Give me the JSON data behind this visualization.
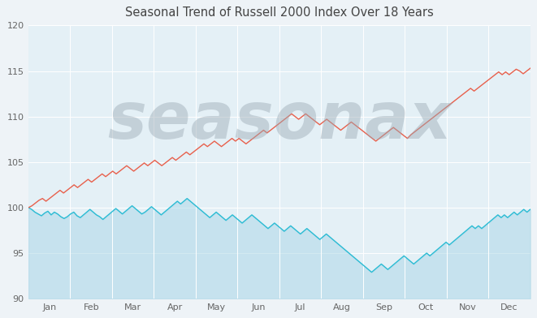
{
  "title": "Seasonal Trend of Russell 2000 Index Over 18 Years",
  "title_fontsize": 10.5,
  "background_color": "#eef3f7",
  "plot_bg_color": "#e4f0f6",
  "ylim": [
    90,
    120
  ],
  "yticks": [
    90,
    95,
    100,
    105,
    110,
    115,
    120
  ],
  "months": [
    "Jan",
    "Feb",
    "Mar",
    "Apr",
    "May",
    "Jun",
    "Jul",
    "Aug",
    "Sep",
    "Oct",
    "Nov",
    "Dec"
  ],
  "watermark": "seasonax",
  "watermark_color": "#9baab5",
  "watermark_alpha": 0.45,
  "watermark_fontsize": 58,
  "line_blue_color": "#2bbcd4",
  "line_red_color": "#e8604c",
  "fill_blue_color": "#aed8e8",
  "fill_alpha": 0.55,
  "blue_data": [
    100.0,
    99.8,
    99.5,
    99.3,
    99.1,
    99.4,
    99.6,
    99.2,
    99.5,
    99.3,
    99.0,
    98.8,
    99.0,
    99.3,
    99.5,
    99.1,
    98.9,
    99.2,
    99.5,
    99.8,
    99.5,
    99.2,
    99.0,
    98.7,
    99.0,
    99.3,
    99.6,
    99.9,
    99.6,
    99.3,
    99.6,
    99.9,
    100.2,
    99.9,
    99.6,
    99.3,
    99.5,
    99.8,
    100.1,
    99.8,
    99.5,
    99.2,
    99.5,
    99.8,
    100.1,
    100.4,
    100.7,
    100.4,
    100.7,
    101.0,
    100.7,
    100.4,
    100.1,
    99.8,
    99.5,
    99.2,
    98.9,
    99.2,
    99.5,
    99.2,
    98.9,
    98.6,
    98.9,
    99.2,
    98.9,
    98.6,
    98.3,
    98.6,
    98.9,
    99.2,
    98.9,
    98.6,
    98.3,
    98.0,
    97.7,
    98.0,
    98.3,
    98.0,
    97.7,
    97.4,
    97.7,
    98.0,
    97.7,
    97.4,
    97.1,
    97.4,
    97.7,
    97.4,
    97.1,
    96.8,
    96.5,
    96.8,
    97.1,
    96.8,
    96.5,
    96.2,
    95.9,
    95.6,
    95.3,
    95.0,
    94.7,
    94.4,
    94.1,
    93.8,
    93.5,
    93.2,
    92.9,
    93.2,
    93.5,
    93.8,
    93.5,
    93.2,
    93.5,
    93.8,
    94.1,
    94.4,
    94.7,
    94.4,
    94.1,
    93.8,
    94.1,
    94.4,
    94.7,
    95.0,
    94.7,
    95.0,
    95.3,
    95.6,
    95.9,
    96.2,
    95.9,
    96.2,
    96.5,
    96.8,
    97.1,
    97.4,
    97.7,
    98.0,
    97.7,
    98.0,
    97.7,
    98.0,
    98.3,
    98.6,
    98.9,
    99.2,
    98.9,
    99.2,
    98.9,
    99.2,
    99.5,
    99.2,
    99.5,
    99.8,
    99.5,
    99.8
  ],
  "red_data": [
    100.0,
    100.2,
    100.5,
    100.8,
    101.0,
    100.7,
    101.0,
    101.3,
    101.6,
    101.9,
    101.6,
    101.9,
    102.2,
    102.5,
    102.2,
    102.5,
    102.8,
    103.1,
    102.8,
    103.1,
    103.4,
    103.7,
    103.4,
    103.7,
    104.0,
    103.7,
    104.0,
    104.3,
    104.6,
    104.3,
    104.0,
    104.3,
    104.6,
    104.9,
    104.6,
    104.9,
    105.2,
    104.9,
    104.6,
    104.9,
    105.2,
    105.5,
    105.2,
    105.5,
    105.8,
    106.1,
    105.8,
    106.1,
    106.4,
    106.7,
    107.0,
    106.7,
    107.0,
    107.3,
    107.0,
    106.7,
    107.0,
    107.3,
    107.6,
    107.3,
    107.6,
    107.3,
    107.0,
    107.3,
    107.6,
    107.9,
    108.2,
    108.5,
    108.2,
    108.5,
    108.8,
    109.1,
    109.4,
    109.7,
    110.0,
    110.3,
    110.0,
    109.7,
    110.0,
    110.3,
    110.0,
    109.7,
    109.4,
    109.1,
    109.4,
    109.7,
    109.4,
    109.1,
    108.8,
    108.5,
    108.8,
    109.1,
    109.4,
    109.1,
    108.8,
    108.5,
    108.2,
    107.9,
    107.6,
    107.3,
    107.6,
    107.9,
    108.2,
    108.5,
    108.8,
    108.5,
    108.2,
    107.9,
    107.6,
    108.0,
    108.3,
    108.6,
    108.9,
    109.2,
    109.5,
    109.8,
    110.1,
    110.4,
    110.7,
    111.0,
    111.3,
    111.6,
    111.9,
    112.2,
    112.5,
    112.8,
    113.1,
    112.8,
    113.1,
    113.4,
    113.7,
    114.0,
    114.3,
    114.6,
    114.9,
    114.6,
    114.9,
    114.6,
    114.9,
    115.2,
    115.0,
    114.7,
    115.0,
    115.3
  ]
}
